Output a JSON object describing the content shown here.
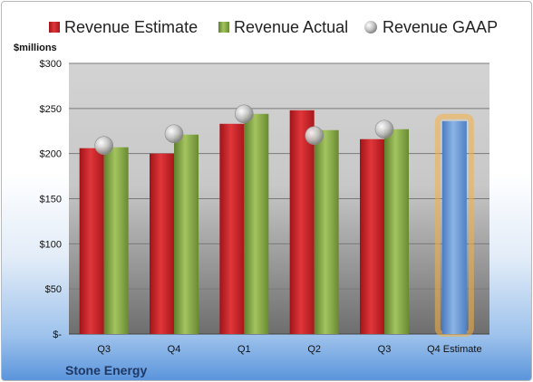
{
  "chart_data": {
    "type": "bar",
    "categories": [
      "Q3",
      "Q4",
      "Q1",
      "Q2",
      "Q3",
      "Q4 Estimate"
    ],
    "series": [
      {
        "name": "Revenue Estimate",
        "kind": "bar",
        "color": "#d9262b",
        "values": [
          206,
          200,
          233,
          248,
          216,
          null
        ]
      },
      {
        "name": "Revenue Actual",
        "kind": "bar",
        "color": "#8fb24a",
        "values": [
          207,
          221,
          244,
          226,
          227,
          null
        ]
      },
      {
        "name": "Revenue GAAP",
        "kind": "marker",
        "color": "#bfbfbf",
        "values": [
          209,
          222,
          244,
          220,
          227,
          null
        ]
      }
    ],
    "forecast": {
      "category": "Q4 Estimate",
      "value": 236,
      "color": "#6f9fd8",
      "glow": "#f5b041"
    },
    "ylim": [
      0,
      300
    ],
    "yticks": [
      0,
      50,
      100,
      150,
      200,
      250,
      300
    ],
    "ytick_labels": [
      "$-",
      "$50",
      "$100",
      "$150",
      "$200",
      "$250",
      "$300"
    ],
    "yunit": "$millions",
    "grid": true,
    "legend_position": "top"
  },
  "brand": "Stone Energy"
}
